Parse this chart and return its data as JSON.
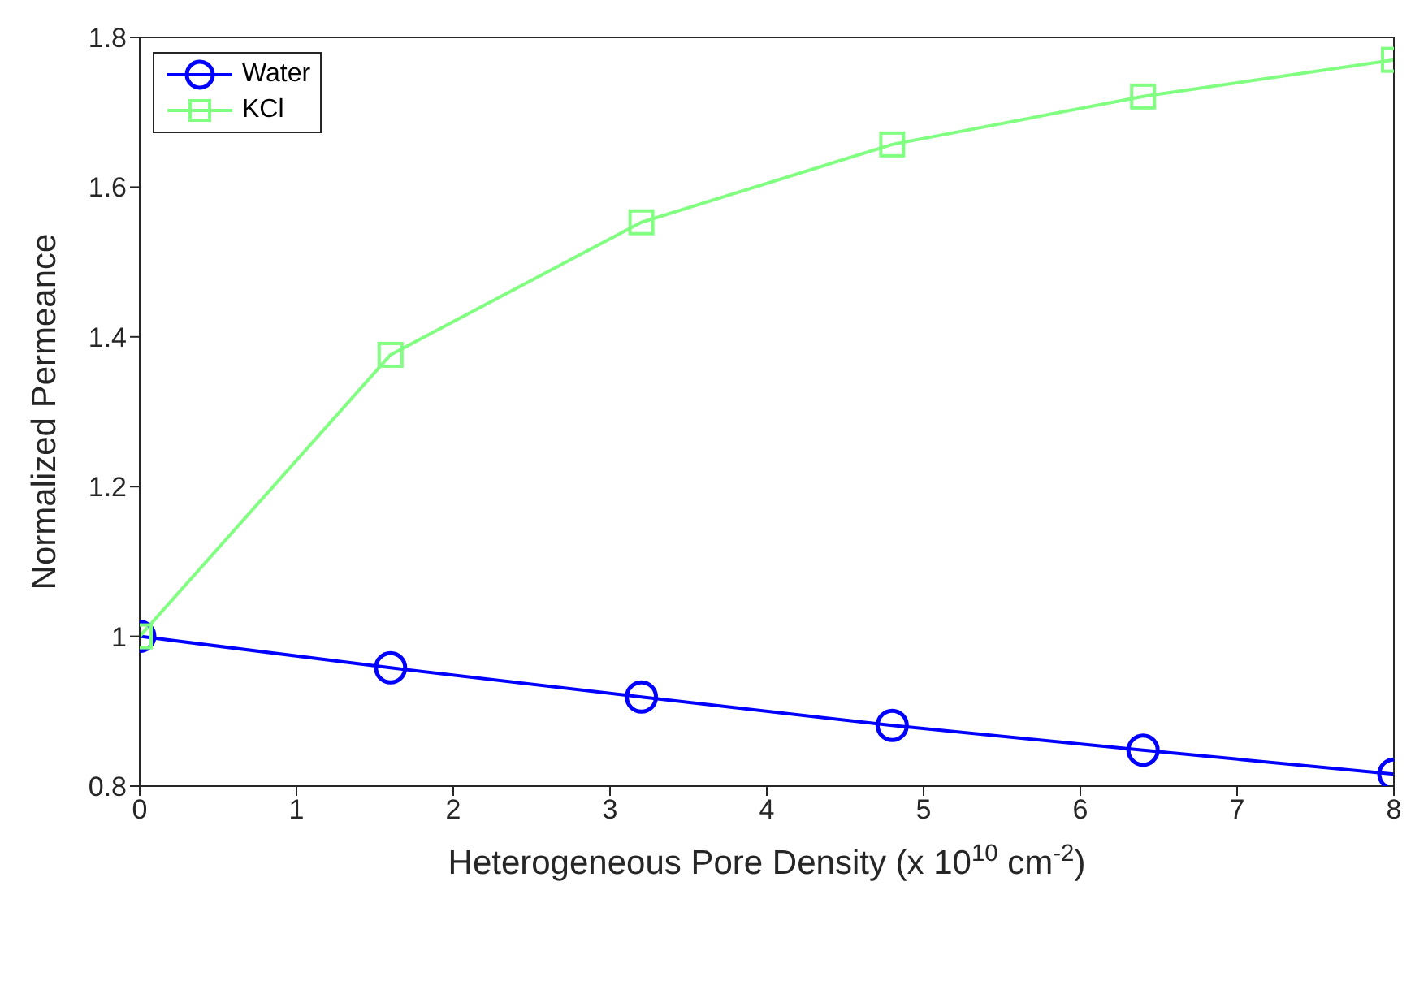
{
  "chart_data": {
    "type": "line",
    "xlabel": "Heterogeneous Pore Density (x 10$^{10}$ cm$^{-2}$)",
    "ylabel": "Normalized Permeance",
    "x": [
      0,
      1.6,
      3.2,
      4.8,
      6.4,
      8
    ],
    "series": [
      {
        "name": "Water",
        "color": "#0000ff",
        "marker": "circle",
        "values": [
          1.0,
          0.958,
          0.919,
          0.881,
          0.848,
          0.816
        ]
      },
      {
        "name": "KCl",
        "color": "#80ff80",
        "marker": "square",
        "values": [
          1.0,
          1.376,
          1.553,
          1.657,
          1.721,
          1.77
        ]
      }
    ],
    "xlim": [
      0,
      8
    ],
    "xticks": [
      0,
      1,
      2,
      3,
      4,
      5,
      6,
      7,
      8
    ],
    "ylim": [
      0.8,
      1.8
    ],
    "yticks": [
      0.8,
      1,
      1.2,
      1.4,
      1.6,
      1.8
    ],
    "grid": false,
    "legend": "top left",
    "line_style": "solid"
  }
}
